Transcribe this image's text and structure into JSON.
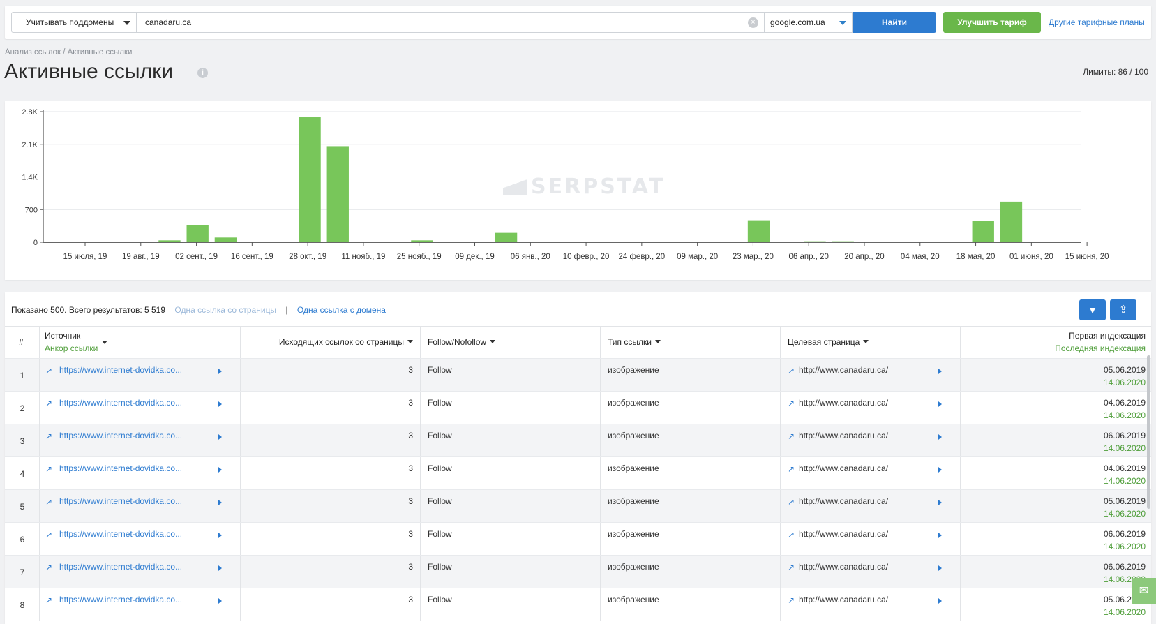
{
  "search": {
    "subdomains_label": "Учитывать поддомены",
    "domain_value": "canadaru.ca",
    "engine_value": "google.com.ua",
    "find_label": "Найти",
    "upgrade_label": "Улучшить тариф",
    "plans_link": "Другие тарифные планы"
  },
  "header": {
    "breadcrumb": "Анализ ссылок / Активные ссылки",
    "title": "Активные ссылки",
    "limits": "Лимиты: 86 / 100"
  },
  "watermark": "SERPSTAT",
  "chart_data": {
    "type": "bar",
    "bar_color": "#78c65a",
    "ylim": [
      0,
      2800
    ],
    "yticks": [
      "0",
      "700",
      "1.4K",
      "2.1K",
      "2.8K"
    ],
    "xticks": [
      "15 июля, 19",
      "19 авг., 19",
      "02 сент., 19",
      "16 сент., 19",
      "28 окт., 19",
      "11 нояб., 19",
      "25 нояб., 19",
      "09 дек., 19",
      "06 янв., 20",
      "10 февр., 20",
      "24 февр., 20",
      "09 мар., 20",
      "23 мар., 20",
      "06 апр., 20",
      "20 апр., 20",
      "04 мая, 20",
      "18 мая, 20",
      "01 июня, 20",
      "15 июня, 20"
    ],
    "values": [
      0,
      0,
      0,
      0,
      40,
      370,
      100,
      0,
      0,
      2680,
      2060,
      10,
      0,
      40,
      10,
      0,
      200,
      0,
      0,
      0,
      0,
      0,
      0,
      0,
      0,
      470,
      0,
      20,
      20,
      0,
      0,
      0,
      0,
      460,
      870,
      0,
      5
    ]
  },
  "table": {
    "summary_prefix": "Показано 500. Всего результатов: 5 519",
    "one_per_page": "Одна ссылка со страницы",
    "separator": "|",
    "one_per_domain": "Одна ссылка с домена",
    "filter_icon": "filter-icon",
    "export_icon": "export-icon",
    "headers": {
      "num": "#",
      "source": "Источник",
      "anchor": "Анкор ссылки",
      "outgoing": "Исходящих ссылок со страницы",
      "follow": "Follow/Nofollow",
      "type": "Тип ссылки",
      "target": "Целевая страница",
      "first_index": "Первая индексация",
      "last_index": "Последняя индексация"
    },
    "rows": [
      {
        "num": "1",
        "source": "https://www.internet-dovidka.co...",
        "outgoing": "3",
        "follow": "Follow",
        "type": "изображение",
        "target": "http://www.canadaru.ca/",
        "first": "05.06.2019",
        "last": "14.06.2020"
      },
      {
        "num": "2",
        "source": "https://www.internet-dovidka.co...",
        "outgoing": "3",
        "follow": "Follow",
        "type": "изображение",
        "target": "http://www.canadaru.ca/",
        "first": "04.06.2019",
        "last": "14.06.2020"
      },
      {
        "num": "3",
        "source": "https://www.internet-dovidka.co...",
        "outgoing": "3",
        "follow": "Follow",
        "type": "изображение",
        "target": "http://www.canadaru.ca/",
        "first": "06.06.2019",
        "last": "14.06.2020"
      },
      {
        "num": "4",
        "source": "https://www.internet-dovidka.co...",
        "outgoing": "3",
        "follow": "Follow",
        "type": "изображение",
        "target": "http://www.canadaru.ca/",
        "first": "04.06.2019",
        "last": "14.06.2020"
      },
      {
        "num": "5",
        "source": "https://www.internet-dovidka.co...",
        "outgoing": "3",
        "follow": "Follow",
        "type": "изображение",
        "target": "http://www.canadaru.ca/",
        "first": "05.06.2019",
        "last": "14.06.2020"
      },
      {
        "num": "6",
        "source": "https://www.internet-dovidka.co...",
        "outgoing": "3",
        "follow": "Follow",
        "type": "изображение",
        "target": "http://www.canadaru.ca/",
        "first": "06.06.2019",
        "last": "14.06.2020"
      },
      {
        "num": "7",
        "source": "https://www.internet-dovidka.co...",
        "outgoing": "3",
        "follow": "Follow",
        "type": "изображение",
        "target": "http://www.canadaru.ca/",
        "first": "06.06.2019",
        "last": "14.06.2020"
      },
      {
        "num": "8",
        "source": "https://www.internet-dovidka.co...",
        "outgoing": "3",
        "follow": "Follow",
        "type": "изображение",
        "target": "http://www.canadaru.ca/",
        "first": "05.06.2019",
        "last": "14.06.2020"
      }
    ]
  }
}
